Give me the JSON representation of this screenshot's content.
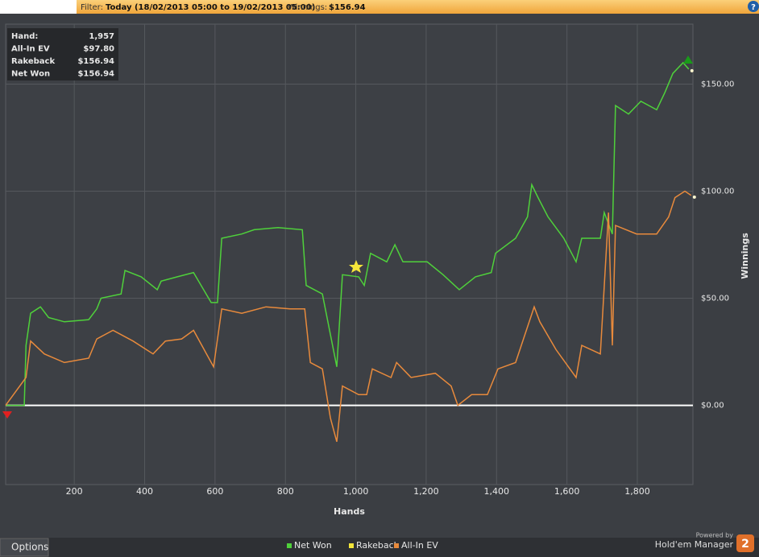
{
  "header": {
    "filter_label": "Filter:",
    "filter_value": "Today (18/02/2013 05:00 to 19/02/2013 05:00)",
    "winnings_label": "Winnings:",
    "winnings_value": "$156.94",
    "help": "?"
  },
  "summary": {
    "rows": [
      [
        "Hand:",
        "1,957"
      ],
      [
        "All-In EV",
        "$97.80"
      ],
      [
        "Rakeback",
        "$156.94"
      ],
      [
        "Net Won",
        "$156.94"
      ]
    ]
  },
  "chart_data": {
    "type": "line",
    "x_label": "Hands",
    "y_label": "Winnings",
    "xlim": [
      5,
      1958
    ],
    "ylim": [
      -37,
      178
    ],
    "xticks": [
      200,
      400,
      600,
      800,
      {
        "value": 1000,
        "label": "1,000"
      },
      {
        "value": 1200,
        "label": "1,200"
      },
      {
        "value": 1400,
        "label": "1,400"
      },
      {
        "value": 1600,
        "label": "1,600"
      },
      {
        "value": 1800,
        "label": "1,800"
      }
    ],
    "yticks": [
      {
        "value": 0,
        "label": "$0.00"
      },
      {
        "value": 50,
        "label": "$50.00"
      },
      {
        "value": 100,
        "label": "$100.00"
      },
      {
        "value": 150,
        "label": "$150.00"
      }
    ],
    "grid": true,
    "legend": [
      {
        "name": "Net Won",
        "color": "#4fd13b"
      },
      {
        "name": "Rakeback",
        "color": "#f2e53a"
      },
      {
        "name": "All-In EV",
        "color": "#e88a3c"
      }
    ],
    "series": [
      {
        "name": "Net Won",
        "color": "#4fd13b",
        "x": [
          5,
          58,
          63,
          76,
          104,
          127,
          172,
          241,
          264,
          276,
          333,
          344,
          390,
          436,
          447,
          493,
          539,
          589,
          607,
          619,
          676,
          711,
          779,
          848,
          859,
          905,
          946,
          962,
          1008,
          1024,
          1042,
          1088,
          1111,
          1134,
          1203,
          1248,
          1294,
          1340,
          1385,
          1397,
          1454,
          1488,
          1500,
          1518,
          1546,
          1591,
          1626,
          1642,
          1695,
          1706,
          1729,
          1738,
          1775,
          1810,
          1855,
          1878,
          1901,
          1930,
          1946
        ],
        "values": [
          0,
          0,
          28,
          43,
          46,
          41,
          39,
          40,
          45,
          50,
          52,
          63,
          60,
          54,
          58,
          60,
          62,
          48,
          48,
          78,
          80,
          82,
          83,
          82,
          56,
          52,
          18,
          61,
          60,
          56,
          71,
          67,
          75,
          67,
          67,
          61,
          54,
          60,
          62,
          71,
          78,
          88,
          103,
          97,
          88,
          78,
          67,
          78,
          78,
          90,
          80,
          140,
          136,
          142,
          138,
          146,
          155,
          160,
          157
        ]
      },
      {
        "name": "All-In EV",
        "color": "#e88a3c",
        "x": [
          5,
          63,
          76,
          115,
          172,
          241,
          264,
          310,
          367,
          424,
          459,
          505,
          539,
          596,
          619,
          676,
          745,
          813,
          855,
          871,
          905,
          928,
          946,
          962,
          1008,
          1031,
          1047,
          1100,
          1116,
          1157,
          1226,
          1271,
          1290,
          1329,
          1374,
          1404,
          1454,
          1507,
          1523,
          1569,
          1626,
          1642,
          1695,
          1718,
          1729,
          1738,
          1798,
          1855,
          1889,
          1907,
          1935,
          1953
        ],
        "values": [
          0,
          13,
          30,
          24,
          20,
          22,
          31,
          35,
          30,
          24,
          30,
          31,
          35,
          18,
          45,
          43,
          46,
          45,
          45,
          20,
          17,
          -6,
          -17,
          9,
          5,
          5,
          17,
          13,
          20,
          13,
          15,
          9,
          0,
          5,
          5,
          17,
          20,
          46,
          39,
          26,
          13,
          28,
          24,
          90,
          28,
          84,
          80,
          80,
          88,
          97,
          100,
          98
        ]
      }
    ]
  },
  "footer": {
    "options": "Options",
    "powered_by": "Powered by",
    "brand": "Hold'em Manager",
    "version": "2"
  }
}
